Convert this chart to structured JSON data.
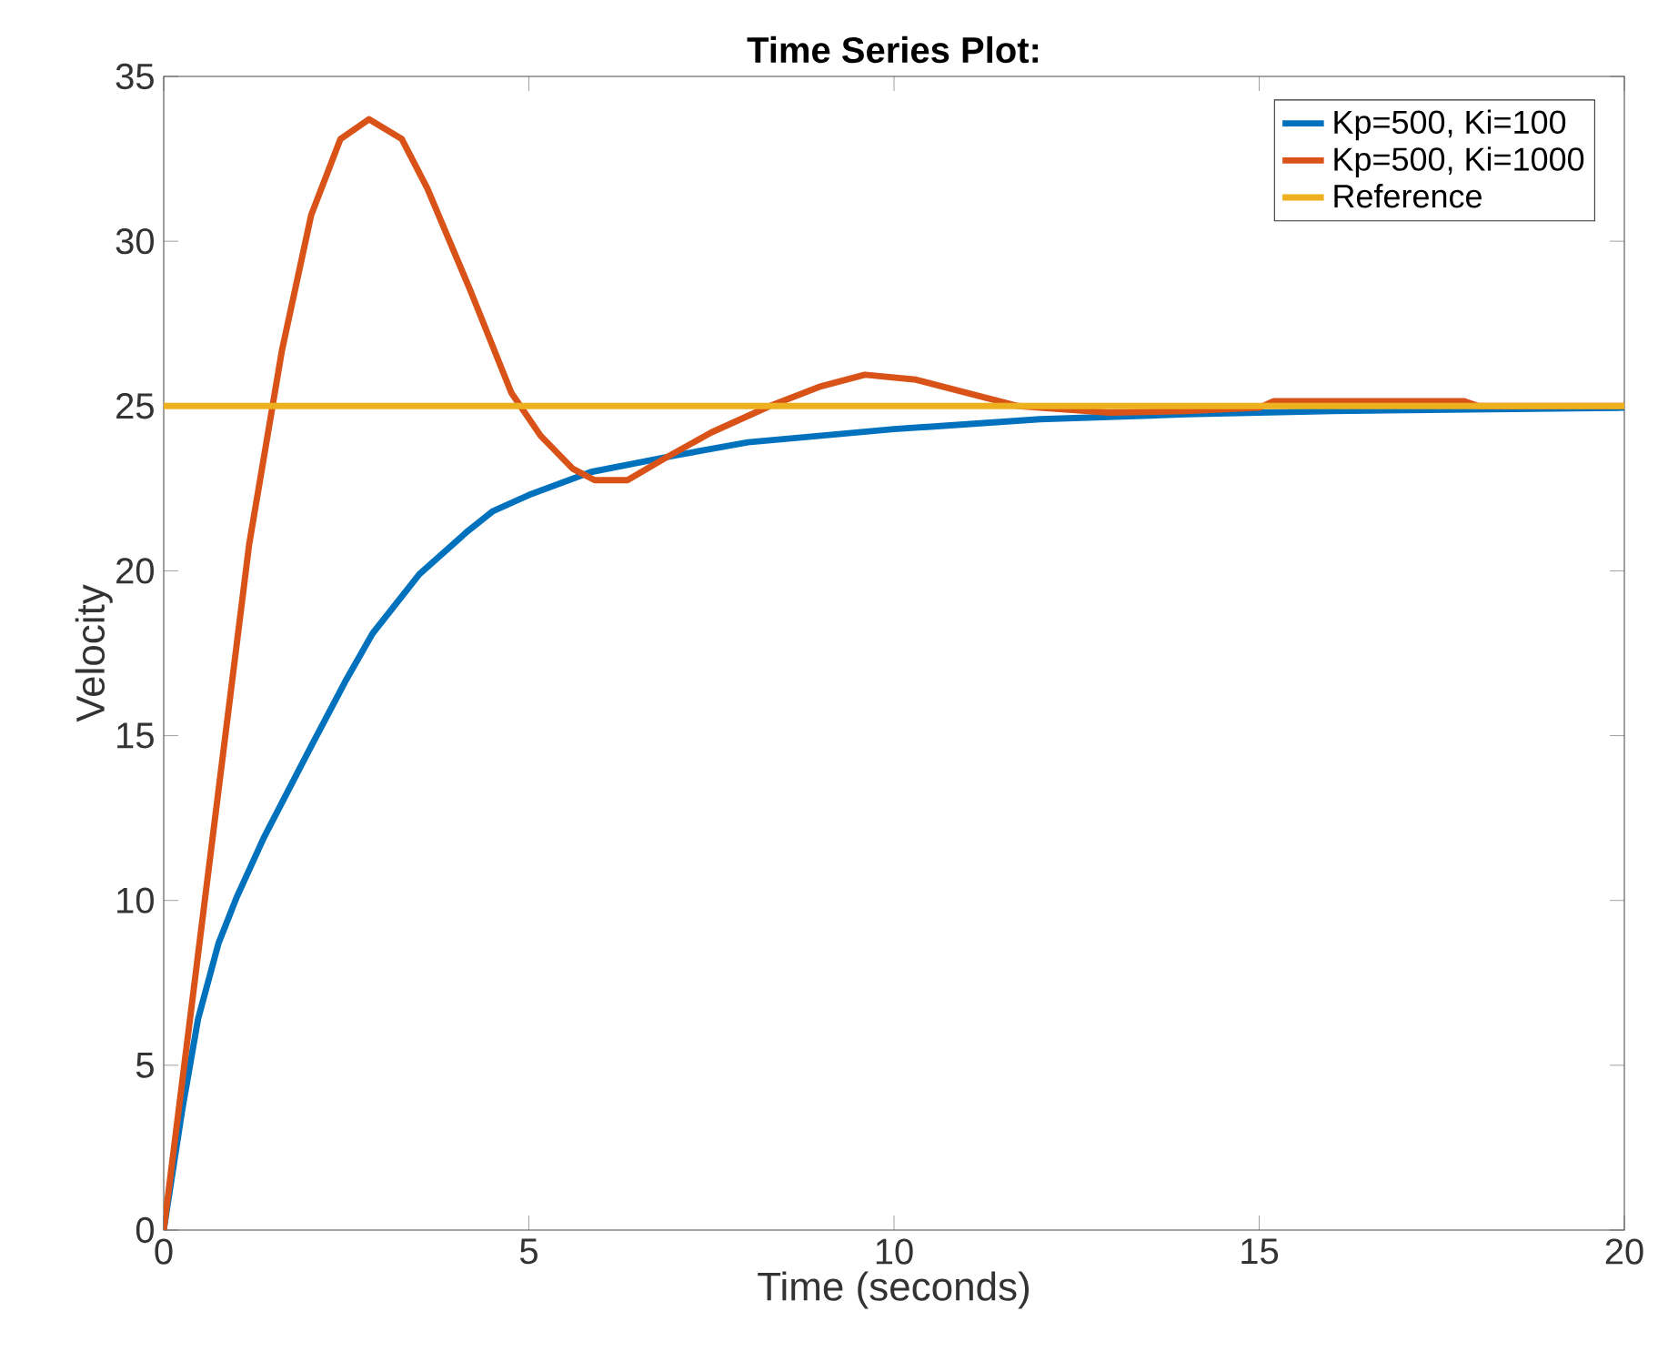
{
  "chart_data": {
    "type": "line",
    "title": "Time Series Plot:",
    "xlabel": "Time (seconds)",
    "ylabel": "Velocity",
    "xlim": [
      0,
      20
    ],
    "ylim": [
      0,
      35
    ],
    "xticks": [
      0,
      5,
      10,
      15,
      20
    ],
    "yticks": [
      0,
      5,
      10,
      15,
      20,
      25,
      30,
      35
    ],
    "grid": false,
    "legend": "top right",
    "marker": "none",
    "line_style": "solid",
    "series": [
      {
        "name": "Kp=500, Ki=100",
        "color": "#0072bd",
        "x": [
          0,
          0.25,
          0.47,
          0.75,
          1,
          1.37,
          2,
          2.5,
          2.86,
          3.5,
          4.16,
          4.5,
          5,
          5.85,
          7,
          8,
          9,
          10,
          11,
          12,
          14,
          16,
          18,
          20
        ],
        "values": [
          0,
          3.6,
          6.4,
          8.7,
          10.1,
          11.9,
          14.6,
          16.7,
          18.1,
          19.9,
          21.2,
          21.8,
          22.3,
          23,
          23.5,
          23.9,
          24.1,
          24.3,
          24.45,
          24.6,
          24.75,
          24.85,
          24.9,
          24.95
        ]
      },
      {
        "name": "Kp=500, Ki=1000",
        "color": "#d95319",
        "x": [
          0,
          1.17,
          1.62,
          2.02,
          2.42,
          2.81,
          3.26,
          3.61,
          4.2,
          4.76,
          5.16,
          5.6,
          5.9,
          6.35,
          6.85,
          7.5,
          8.3,
          9,
          9.6,
          10.3,
          11,
          11.7,
          12.95,
          14,
          15,
          15.2,
          17.8,
          18,
          20
        ],
        "values": [
          0,
          20.8,
          26.7,
          30.8,
          33.1,
          33.7,
          33.1,
          31.6,
          28.5,
          25.4,
          24.1,
          23.1,
          22.75,
          22.75,
          23.4,
          24.2,
          25,
          25.6,
          25.95,
          25.8,
          25.4,
          25,
          24.8,
          24.85,
          24.95,
          25.15,
          25.15,
          25,
          25
        ]
      },
      {
        "name": "Reference",
        "color": "#edb120",
        "x": [
          0,
          20
        ],
        "values": [
          25,
          25
        ]
      }
    ]
  }
}
